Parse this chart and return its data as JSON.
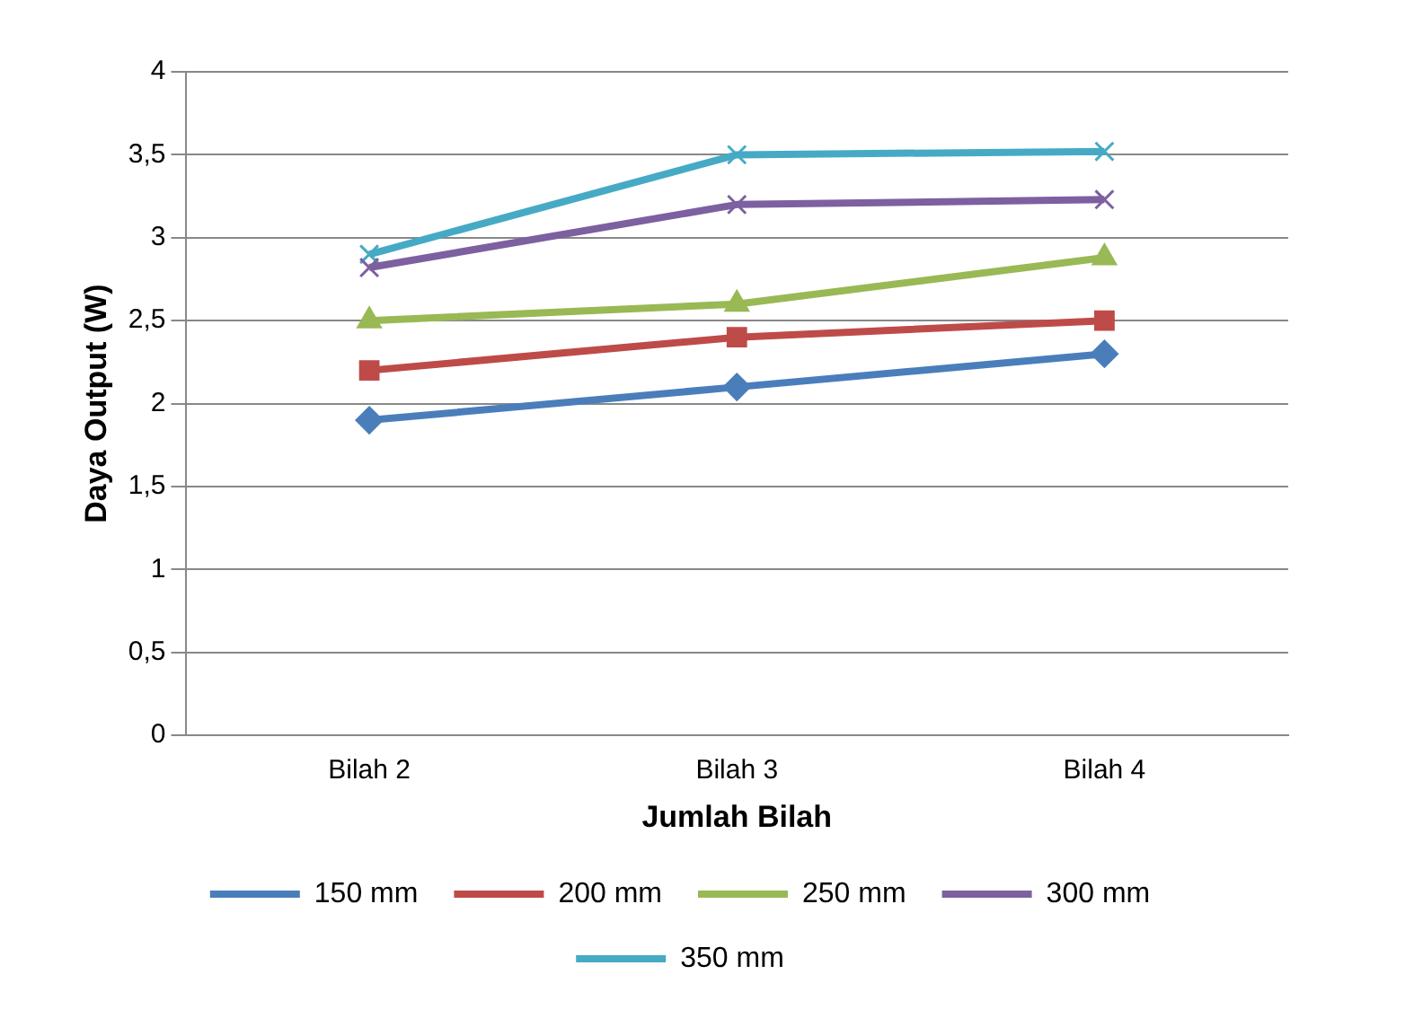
{
  "chart_data": {
    "type": "line",
    "xlabel": "Jumlah Bilah",
    "ylabel": "Daya Output (W)",
    "categories": [
      "Bilah 2",
      "Bilah 3",
      "Bilah 4"
    ],
    "series": [
      {
        "name": "150 mm",
        "color": "#4a7ebb",
        "marker": "diamond",
        "values": [
          1.9,
          2.1,
          2.3
        ]
      },
      {
        "name": "200 mm",
        "color": "#be4b48",
        "marker": "square",
        "values": [
          2.2,
          2.4,
          2.5
        ]
      },
      {
        "name": "250 mm",
        "color": "#98b954",
        "marker": "triangle",
        "values": [
          2.5,
          2.6,
          2.88
        ]
      },
      {
        "name": "300 mm",
        "color": "#7d60a0",
        "marker": "cross",
        "values": [
          2.82,
          3.2,
          3.23
        ]
      },
      {
        "name": "350 mm",
        "color": "#46aac5",
        "marker": "cross",
        "values": [
          2.9,
          3.5,
          3.52
        ]
      }
    ],
    "ylim": [
      0,
      4
    ],
    "yticks": [
      0,
      {
        "value": 0.5,
        "label": "0,5"
      },
      1,
      {
        "value": 1.5,
        "label": "1,5"
      },
      2,
      {
        "value": 2.5,
        "label": "2,5"
      },
      3,
      {
        "value": 3.5,
        "label": "3,5"
      },
      4
    ],
    "grid": "y",
    "legend": "bottom",
    "line_style": "solid"
  }
}
